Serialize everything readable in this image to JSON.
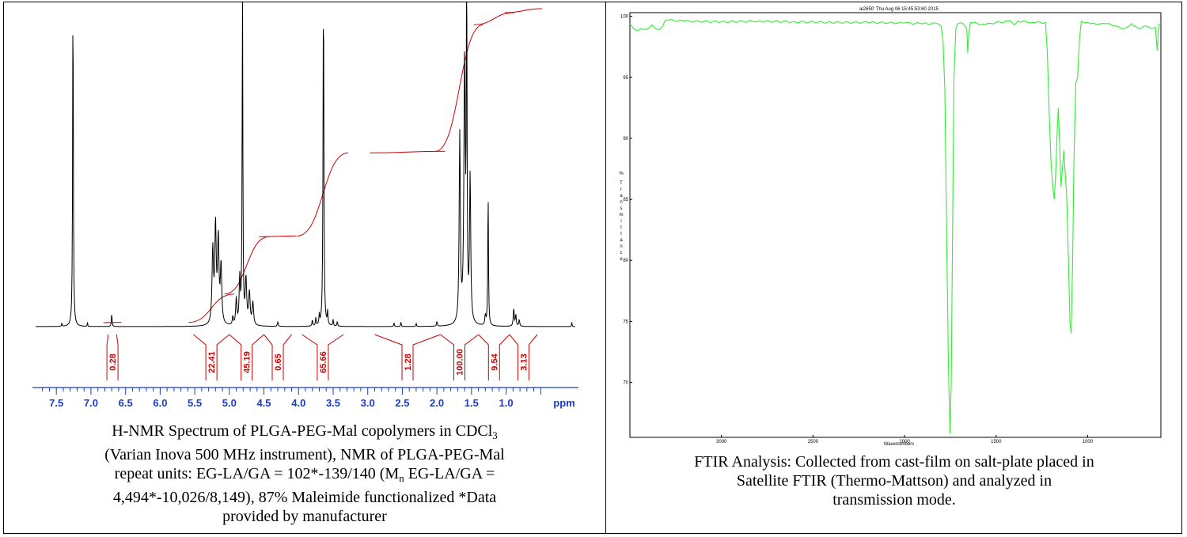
{
  "nmr": {
    "caption": {
      "l1_pre": "H-NMR Spectrum of PLGA-PEG-Mal copolymers in CDCl",
      "l1_sub": "3",
      "l2": "(Varian Inova 500 MHz instrument), NMR of PLGA-PEG-Mal",
      "l3": "repeat units: EG-LA/GA = 102*-139/140 (M",
      "l3_sub": "n",
      "l3_post": " EG-LA/GA =",
      "l4": "4,494*-10,026/8,149), 87% Maleimide functionalized *Data",
      "l5": "provided by manufacturer"
    }
  },
  "ftir": {
    "caption": {
      "l1": "FTIR Analysis: Collected from cast-film on salt-plate placed in",
      "l2": "Satellite FTIR (Thermo-Mattson) and analyzed in",
      "l3": "transmission mode."
    }
  },
  "chart_data": [
    {
      "type": "line",
      "title": "",
      "xlabel": "ppm",
      "ylabel": "",
      "x_reversed": true,
      "xlim": [
        7.8,
        0.0
      ],
      "ylim": [
        0,
        100
      ],
      "x_ticks": [
        "7.5",
        "7.0",
        "6.5",
        "6.0",
        "5.5",
        "5.0",
        "4.5",
        "4.0",
        "3.5",
        "3.0",
        "2.5",
        "2.0",
        "1.5",
        "1.0",
        "ppm"
      ],
      "x_tick_values": [
        7.5,
        7.0,
        6.5,
        6.0,
        5.5,
        5.0,
        4.5,
        4.0,
        3.5,
        3.0,
        2.5,
        2.0,
        1.5,
        1.0
      ],
      "colors": {
        "spectrum": "#000000",
        "integral": "#cc0000",
        "axis": "#1a3cc8"
      },
      "peaks": [
        {
          "x": 7.42,
          "h": 1.2,
          "w": 0.004
        },
        {
          "x": 7.26,
          "h": 105,
          "w": 0.006
        },
        {
          "x": 7.05,
          "h": 1.3,
          "w": 0.004
        },
        {
          "x": 6.7,
          "h": 4.0,
          "w": 0.006
        },
        {
          "x": 5.24,
          "h": 23,
          "w": 0.012
        },
        {
          "x": 5.2,
          "h": 30,
          "w": 0.012
        },
        {
          "x": 5.16,
          "h": 26,
          "w": 0.012
        },
        {
          "x": 5.12,
          "h": 18,
          "w": 0.012
        },
        {
          "x": 4.95,
          "h": 2.5,
          "w": 0.008
        },
        {
          "x": 4.9,
          "h": 8,
          "w": 0.01
        },
        {
          "x": 4.81,
          "h": 105,
          "w": 0.006
        },
        {
          "x": 4.85,
          "h": 14,
          "w": 0.01
        },
        {
          "x": 4.76,
          "h": 14,
          "w": 0.012
        },
        {
          "x": 4.71,
          "h": 10,
          "w": 0.012
        },
        {
          "x": 4.66,
          "h": 7,
          "w": 0.012
        },
        {
          "x": 4.3,
          "h": 1.3,
          "w": 0.008
        },
        {
          "x": 3.8,
          "h": 2.0,
          "w": 0.006
        },
        {
          "x": 3.75,
          "h": 2.5,
          "w": 0.006
        },
        {
          "x": 3.7,
          "h": 3.0,
          "w": 0.006
        },
        {
          "x": 3.64,
          "h": 105,
          "w": 0.007
        },
        {
          "x": 3.58,
          "h": 4.0,
          "w": 0.006
        },
        {
          "x": 3.5,
          "h": 2.0,
          "w": 0.006
        },
        {
          "x": 3.44,
          "h": 1.5,
          "w": 0.006
        },
        {
          "x": 2.62,
          "h": 1.2,
          "w": 0.005
        },
        {
          "x": 2.52,
          "h": 1.5,
          "w": 0.005
        },
        {
          "x": 2.3,
          "h": 1.0,
          "w": 0.005
        },
        {
          "x": 2.0,
          "h": 1.5,
          "w": 0.006
        },
        {
          "x": 1.67,
          "h": 58,
          "w": 0.01
        },
        {
          "x": 1.6,
          "h": 80,
          "w": 0.012
        },
        {
          "x": 1.57,
          "h": 105,
          "w": 0.006
        },
        {
          "x": 1.52,
          "h": 45,
          "w": 0.01
        },
        {
          "x": 1.26,
          "h": 42,
          "w": 0.006
        },
        {
          "x": 1.3,
          "h": 3.0,
          "w": 0.008
        },
        {
          "x": 0.89,
          "h": 5.5,
          "w": 0.008
        },
        {
          "x": 0.86,
          "h": 3.5,
          "w": 0.008
        },
        {
          "x": 0.81,
          "h": 2.0,
          "w": 0.008
        },
        {
          "x": 0.05,
          "h": 1.5,
          "w": 0.004
        }
      ],
      "integrals": [
        {
          "label": "0.28",
          "from": 6.75,
          "to": 6.63
        },
        {
          "label": "22.41",
          "from": 5.52,
          "to": 5.0
        },
        {
          "label": "45.19",
          "from": 5.0,
          "to": 4.5
        },
        {
          "label": "0.65",
          "from": 4.5,
          "to": 4.1
        },
        {
          "label": "65.66",
          "from": 3.95,
          "to": 3.35
        },
        {
          "label": "1.28",
          "from": 2.9,
          "to": 1.95
        },
        {
          "label": "100.00",
          "from": 1.95,
          "to": 1.4
        },
        {
          "label": "9.54",
          "from": 1.4,
          "to": 0.95
        },
        {
          "label": "3.13",
          "from": 0.95,
          "to": 0.55
        }
      ]
    },
    {
      "type": "line",
      "title": "ai2650'  Thu Aug 06 15:45:53:60 2015",
      "xlabel": "Wavenumbers",
      "ylabel": "% Transmittance",
      "x_reversed": true,
      "xlim": [
        3500,
        600
      ],
      "ylim": [
        65.5,
        100.3
      ],
      "x_ticks": [
        3000,
        2500,
        2000,
        1500,
        1000
      ],
      "y_ticks": [
        100,
        95,
        90,
        85,
        80,
        75,
        70
      ],
      "colors": {
        "line": "#33ee33"
      },
      "series": [
        {
          "name": "",
          "points": [
            [
              3500,
              99.4
            ],
            [
              3480,
              99.0
            ],
            [
              3460,
              98.8
            ],
            [
              3440,
              99.0
            ],
            [
              3420,
              98.9
            ],
            [
              3400,
              99.0
            ],
            [
              3380,
              99.3
            ],
            [
              3360,
              99.0
            ],
            [
              3340,
              98.9
            ],
            [
              3320,
              99.2
            ],
            [
              3310,
              99.6
            ],
            [
              3300,
              99.7
            ],
            [
              3200,
              99.6
            ],
            [
              3000,
              99.55
            ],
            [
              2800,
              99.6
            ],
            [
              2600,
              99.55
            ],
            [
              2400,
              99.5
            ],
            [
              2200,
              99.5
            ],
            [
              2000,
              99.45
            ],
            [
              1900,
              99.4
            ],
            [
              1820,
              99.4
            ],
            [
              1800,
              99.2
            ],
            [
              1790,
              98.0
            ],
            [
              1780,
              94.0
            ],
            [
              1770,
              82.0
            ],
            [
              1760,
              71.0
            ],
            [
              1752,
              65.8
            ],
            [
              1745,
              70.0
            ],
            [
              1738,
              82.0
            ],
            [
              1730,
              95.0
            ],
            [
              1720,
              99.0
            ],
            [
              1710,
              99.4
            ],
            [
              1680,
              99.4
            ],
            [
              1660,
              99.0
            ],
            [
              1655,
              97.0
            ],
            [
              1650,
              98.5
            ],
            [
              1640,
              99.5
            ],
            [
              1560,
              99.3
            ],
            [
              1500,
              99.5
            ],
            [
              1420,
              99.6
            ],
            [
              1400,
              99.3
            ],
            [
              1380,
              99.6
            ],
            [
              1300,
              99.5
            ],
            [
              1230,
              99.5
            ],
            [
              1220,
              97.0
            ],
            [
              1210,
              92.0
            ],
            [
              1200,
              88.0
            ],
            [
              1190,
              86.0
            ],
            [
              1182,
              85.0
            ],
            [
              1175,
              87.0
            ],
            [
              1168,
              90.0
            ],
            [
              1160,
              92.5
            ],
            [
              1152,
              89.0
            ],
            [
              1145,
              86.0
            ],
            [
              1138,
              87.5
            ],
            [
              1130,
              89.0
            ],
            [
              1122,
              87.0
            ],
            [
              1115,
              85.5
            ],
            [
              1105,
              80.0
            ],
            [
              1097,
              75.0
            ],
            [
              1090,
              74.0
            ],
            [
              1082,
              80.0
            ],
            [
              1075,
              88.0
            ],
            [
              1065,
              94.5
            ],
            [
              1055,
              95.0
            ],
            [
              1045,
              98.0
            ],
            [
              1035,
              99.6
            ],
            [
              1000,
              99.5
            ],
            [
              950,
              99.3
            ],
            [
              900,
              99.4
            ],
            [
              850,
              99.2
            ],
            [
              800,
              99.0
            ],
            [
              760,
              99.4
            ],
            [
              720,
              99.0
            ],
            [
              680,
              99.2
            ],
            [
              650,
              99.0
            ],
            [
              630,
              99.1
            ],
            [
              620,
              97.2
            ],
            [
              612,
              99.3
            ],
            [
              600,
              99.4
            ]
          ]
        }
      ]
    }
  ]
}
